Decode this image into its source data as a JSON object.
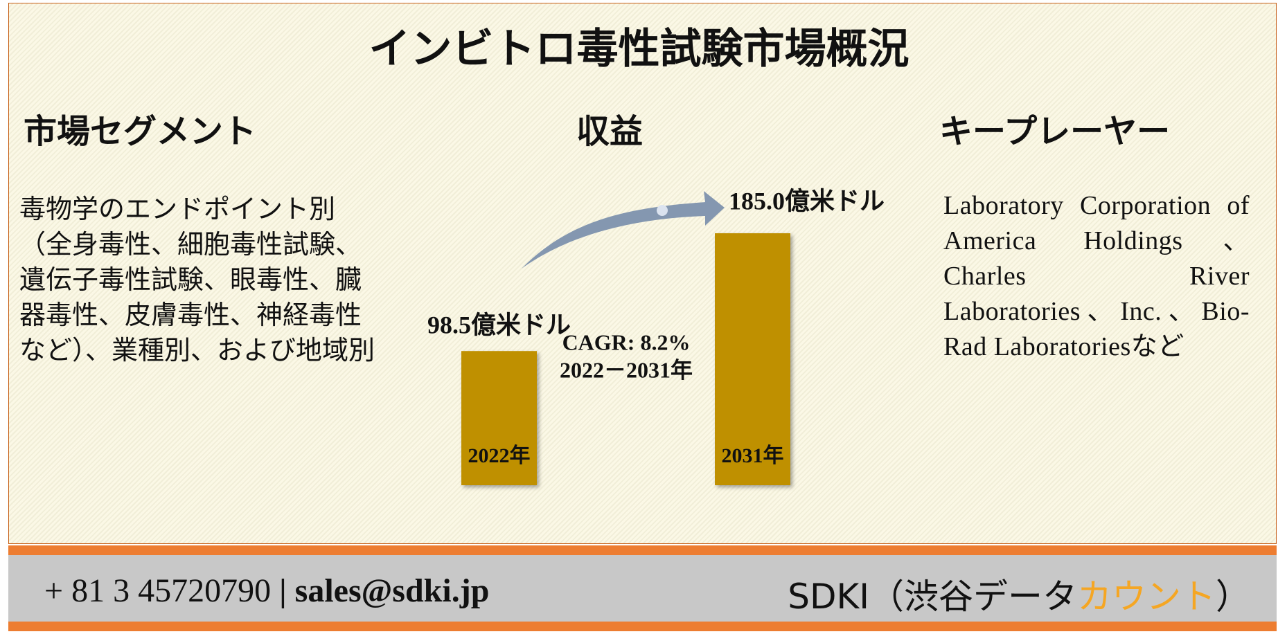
{
  "header": {
    "title": "インビトロ毒性試験市場概況"
  },
  "segments": {
    "heading": "市場セグメント",
    "text": "毒物学のエンドポイント別（全身毒性、細胞毒性試験、遺伝子毒性試験、眼毒性、臓器毒性、皮膚毒性、神経毒性など）、業種別、および地域別"
  },
  "revenue": {
    "heading": "収益",
    "categories": [
      "2022年",
      "2031年"
    ],
    "values": [
      98.5,
      185.0
    ],
    "value_labels": [
      "98.5億米ドル",
      "185.0億米ドル"
    ],
    "color": "#bf9000",
    "cagr": "CAGR: 8.2%",
    "period": "2022－2031年"
  },
  "key_players": {
    "heading": "キープレーヤー",
    "text": "Laboratory Corporation of America Holdings、Charles River Laboratories、Inc.、Bio-Rad Laboratoriesなど"
  },
  "footer": {
    "phone": "+ 81 3 45720790",
    "separator": "|",
    "email": "sales@sdki.jp",
    "brand": "SDKI（渋谷データ",
    "brand_highlight": "カウント",
    "brand_close": "）"
  }
}
